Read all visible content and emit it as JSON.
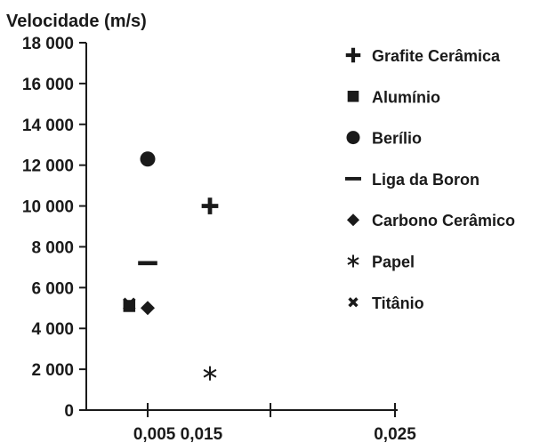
{
  "chart_data": {
    "type": "scatter",
    "title": "",
    "ylabel": "Velocidade (m/s)",
    "xlabel": "",
    "ylim": [
      0,
      18000
    ],
    "y_ticks": [
      {
        "value": 0,
        "label": "0"
      },
      {
        "value": 2000,
        "label": "2 000"
      },
      {
        "value": 4000,
        "label": "4 000"
      },
      {
        "value": 6000,
        "label": "6 000"
      },
      {
        "value": 8000,
        "label": "8 000"
      },
      {
        "value": 10000,
        "label": "10 000"
      },
      {
        "value": 12000,
        "label": "12 000"
      },
      {
        "value": 14000,
        "label": "14 000"
      },
      {
        "value": 16000,
        "label": "16 000"
      },
      {
        "value": 18000,
        "label": "18 000"
      }
    ],
    "x_ticks": [
      {
        "value": 0.005,
        "label": "0,005"
      },
      {
        "value": 0.015,
        "label": "0,015"
      },
      {
        "value": 0.025,
        "label": "0,025"
      }
    ],
    "x_tick_label_text": "0,005 0,015",
    "grid": false,
    "legend_position": "right",
    "series": [
      {
        "name": "Grafite Cerâmica",
        "marker": "plus",
        "points": [
          {
            "x": 0.0085,
            "y": 10000
          }
        ]
      },
      {
        "name": "Alumínio",
        "marker": "square",
        "points": [
          {
            "x": 0.0035,
            "y": 5100
          }
        ]
      },
      {
        "name": "Berílio",
        "marker": "circle",
        "points": [
          {
            "x": 0.005,
            "y": 12300
          }
        ]
      },
      {
        "name": "Liga da Boron",
        "marker": "dash",
        "points": [
          {
            "x": 0.005,
            "y": 7200
          }
        ]
      },
      {
        "name": "Carbono Cerâmico",
        "marker": "diamond",
        "points": [
          {
            "x": 0.005,
            "y": 5000
          }
        ]
      },
      {
        "name": "Papel",
        "marker": "asterisk",
        "points": [
          {
            "x": 0.0085,
            "y": 1800
          }
        ]
      },
      {
        "name": "Titânio",
        "marker": "x",
        "points": [
          {
            "x": 0.0035,
            "y": 5200
          }
        ]
      }
    ],
    "marker_color": "#1a1a1a"
  }
}
